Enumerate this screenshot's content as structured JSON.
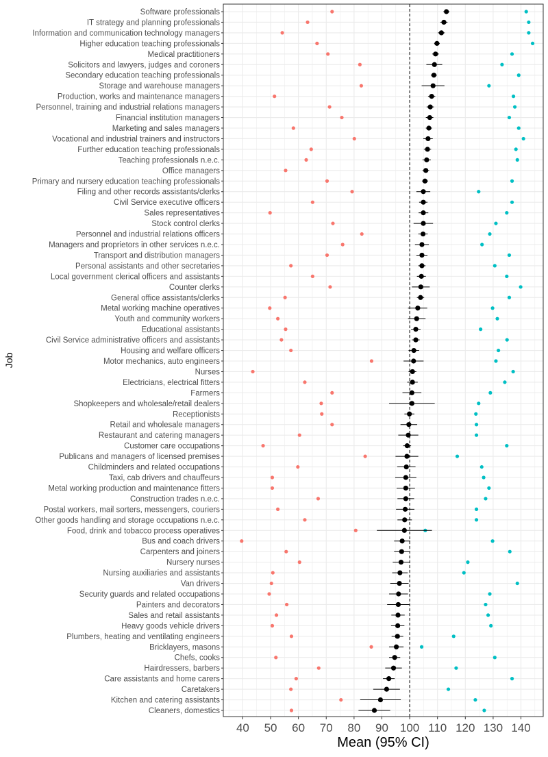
{
  "chart_data": {
    "type": "scatter",
    "title": "",
    "xlabel": "Mean (95% CI)",
    "ylabel": "Job",
    "xlim": [
      33,
      148
    ],
    "xticks": [
      40,
      50,
      60,
      70,
      80,
      90,
      100,
      110,
      120,
      130,
      140
    ],
    "reference_line": 100,
    "grid": true,
    "legend": "none",
    "colors": {
      "low": "#F8766D",
      "high": "#00BFC4",
      "mean": "#000000",
      "panel_border": "#333333",
      "grid": "#ebebeb"
    },
    "categories": [
      "Software professionals",
      "IT strategy and planning professionals",
      "Information and communication technology managers",
      "Higher education teaching professionals",
      "Medical practitioners",
      "Solicitors and lawyers, judges and coroners",
      "Secondary education teaching professionals",
      "Storage and warehouse managers",
      "Production, works and maintenance managers",
      "Personnel, training and industrial relations managers",
      "Financial institution managers",
      "Marketing and sales managers",
      "Vocational and industrial trainers and instructors",
      "Further education teaching professionals",
      "Teaching professionals n.e.c.",
      "Office managers",
      "Primary and nursery education teaching professionals",
      "Filing and other records assistants/clerks",
      "Civil Service executive officers",
      "Sales representatives",
      "Stock control clerks",
      "Personnel and industrial relations officers",
      "Managers and proprietors in other services n.e.c.",
      "Transport and distribution managers",
      "Personal assistants and other secretaries",
      "Local government clerical officers and assistants",
      "Counter clerks",
      "General office assistants/clerks",
      "Metal working machine operatives",
      "Youth and community workers",
      "Educational assistants",
      "Civil Service administrative officers and assistants",
      "Housing and welfare officers",
      "Motor mechanics, auto engineers",
      "Nurses",
      "Electricians, electrical fitters",
      "Farmers",
      "Shopkeepers and wholesale/retail dealers",
      "Receptionists",
      "Retail and wholesale managers",
      "Restaurant and catering managers",
      "Customer care occupations",
      "Publicans and managers of licensed premises",
      "Childminders and related occupations",
      "Taxi, cab drivers and chauffeurs",
      "Metal working production and maintenance fitters",
      "Construction trades n.e.c.",
      "Postal workers, mail sorters, messengers, couriers",
      "Other goods handling and storage occupations n.e.c.",
      "Food, drink and tobacco process operatives",
      "Bus and coach drivers",
      "Carpenters and joiners",
      "Nursery nurses",
      "Nursing auxiliaries and assistants",
      "Van drivers",
      "Security guards and related occupations",
      "Painters and decorators",
      "Sales and retail assistants",
      "Heavy goods vehicle drivers",
      "Plumbers, heating and ventilating engineers",
      "Bricklayers, masons",
      "Chefs, cooks",
      "Hairdressers, barbers",
      "Care assistants and home carers",
      "Caretakers",
      "Kitchen and catering assistants",
      "Cleaners, domestics"
    ],
    "mean": [
      113.2,
      112.3,
      111.4,
      109.8,
      109.3,
      108.9,
      108.7,
      108.4,
      107.9,
      107.4,
      107.2,
      106.9,
      106.6,
      106.4,
      106.1,
      105.8,
      105.5,
      104.9,
      104.9,
      104.9,
      104.9,
      104.8,
      104.4,
      104.4,
      104.4,
      104.2,
      104.0,
      103.9,
      102.9,
      102.5,
      102.2,
      102.2,
      101.5,
      101.4,
      101.0,
      101.0,
      100.8,
      100.8,
      99.9,
      99.7,
      99.5,
      99.1,
      99.0,
      98.8,
      98.6,
      98.6,
      98.6,
      98.4,
      98.2,
      98.1,
      97.3,
      97.1,
      96.9,
      96.5,
      96.3,
      96.0,
      95.9,
      95.8,
      95.7,
      95.6,
      95.2,
      94.6,
      94.2,
      92.5,
      91.7,
      89.5,
      87.3
    ],
    "ci_low": [
      112.1,
      111.0,
      110.1,
      108.8,
      108.1,
      106.0,
      107.6,
      104.3,
      106.6,
      106.1,
      105.8,
      105.8,
      104.9,
      105.1,
      104.6,
      104.6,
      104.4,
      102.4,
      103.4,
      103.2,
      101.4,
      103.1,
      101.9,
      102.4,
      103.1,
      102.6,
      100.8,
      102.6,
      99.4,
      99.4,
      100.5,
      100.8,
      99.6,
      97.8,
      99.6,
      99.1,
      97.4,
      92.6,
      98.1,
      96.7,
      95.9,
      97.7,
      94.9,
      95.5,
      94.8,
      95.3,
      95.6,
      95.1,
      95.6,
      88.2,
      94.4,
      94.4,
      93.9,
      93.7,
      93.0,
      92.6,
      91.9,
      93.4,
      93.3,
      93.5,
      92.6,
      92.6,
      91.2,
      90.4,
      86.9,
      82.2,
      81.6
    ],
    "ci_high": [
      114.3,
      113.6,
      112.6,
      110.8,
      110.5,
      111.7,
      109.8,
      112.5,
      109.2,
      108.7,
      108.5,
      108.0,
      108.3,
      107.7,
      107.6,
      107.0,
      106.6,
      107.4,
      106.4,
      106.7,
      108.4,
      106.5,
      106.9,
      106.4,
      105.7,
      105.8,
      107.2,
      105.2,
      106.3,
      105.7,
      103.9,
      103.6,
      103.4,
      105.0,
      102.4,
      102.9,
      104.2,
      109.0,
      101.7,
      102.7,
      103.1,
      100.5,
      103.1,
      102.1,
      102.4,
      101.9,
      101.6,
      101.7,
      100.8,
      108.0,
      100.2,
      99.8,
      99.9,
      99.3,
      99.6,
      99.4,
      99.9,
      98.2,
      98.1,
      97.7,
      97.8,
      96.6,
      97.2,
      94.6,
      96.5,
      96.8,
      93.0
    ],
    "low_points": [
      72.1,
      63.3,
      54.2,
      66.7,
      70.6,
      82.1,
      null,
      82.6,
      51.4,
      71.2,
      75.6,
      58.2,
      80.1,
      64.6,
      62.8,
      55.4,
      70.3,
      79.3,
      65.1,
      49.8,
      72.4,
      82.8,
      75.9,
      70.3,
      57.3,
      65.1,
      71.4,
      55.2,
      49.7,
      52.6,
      55.4,
      53.9,
      57.3,
      86.3,
      43.6,
      62.3,
      72.1,
      68.2,
      68.4,
      72.1,
      60.4,
      47.3,
      84.0,
      59.8,
      50.6,
      50.6,
      67.1,
      52.6,
      62.3,
      80.6,
      39.6,
      55.6,
      60.4,
      50.8,
      50.3,
      49.5,
      55.8,
      52.1,
      50.6,
      57.5,
      86.2,
      51.9,
      67.3,
      59.2,
      57.3,
      75.3,
      57.5
    ],
    "high_points": [
      141.9,
      142.8,
      142.8,
      144.2,
      136.8,
      133.2,
      139.2,
      128.5,
      137.3,
      137.8,
      135.8,
      139.2,
      140.9,
      138.2,
      138.7,
      null,
      136.8,
      124.8,
      136.8,
      134.9,
      131.0,
      128.8,
      126.0,
      135.8,
      130.6,
      134.9,
      139.9,
      135.8,
      129.8,
      131.5,
      125.5,
      135.0,
      131.9,
      131.0,
      137.2,
      134.2,
      129.0,
      124.8,
      123.8,
      124.0,
      124.0,
      134.9,
      117.1,
      125.9,
      126.6,
      128.5,
      127.3,
      124.0,
      124.0,
      105.6,
      129.8,
      136.0,
      120.9,
      119.5,
      138.7,
      128.8,
      127.3,
      128.2,
      129.2,
      115.8,
      104.3,
      130.6,
      116.7,
      136.8,
      113.9,
      123.6,
      126.8
    ]
  }
}
